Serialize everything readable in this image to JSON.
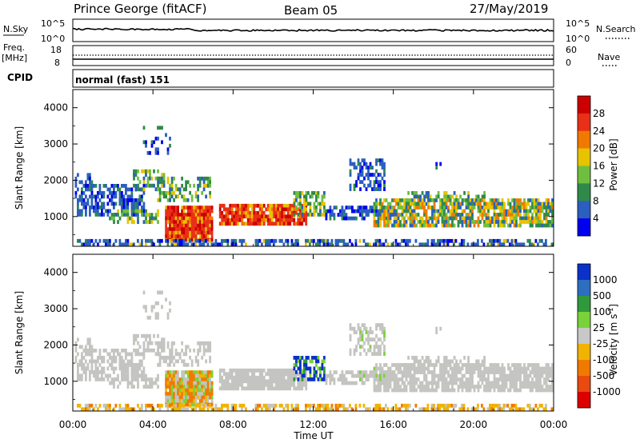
{
  "header": {
    "station": "Prince George (fitACF)",
    "beam": "Beam 05",
    "date": "27/May/2019"
  },
  "labels": {
    "nsky": "N.Sky",
    "nsearch": "N.Search",
    "freq": "Freq.",
    "freq_unit": "[MHz]",
    "nave": "Nave",
    "cpid": "CPID",
    "mode": "normal (fast) 151",
    "ylabel": "Slant Range [km]",
    "xlabel": "Time UT",
    "power_label": "Power [dB]",
    "velocity_label": "Velocity [m s",
    "velocity_exp": "-1",
    "velocity_label_end": "]"
  },
  "noise_axis": {
    "left_top": "10^5",
    "left_bottom": "10^0",
    "right_top": "10^5",
    "right_bottom": "10^0"
  },
  "freq_axis": {
    "left_top": "18",
    "left_bottom": "8",
    "right_top": "60",
    "right_bottom": "0"
  },
  "chart_data": {
    "type": "heatmap",
    "x_ticks": [
      "00:00",
      "04:00",
      "08:00",
      "12:00",
      "16:00",
      "20:00",
      "00:00"
    ],
    "x_hours": [
      0,
      4,
      8,
      12,
      16,
      20,
      24
    ],
    "y_ticks": [
      1000,
      2000,
      3000,
      4000
    ],
    "ylim": [
      180,
      4500
    ],
    "xlim": [
      0,
      24
    ],
    "power_scale": {
      "ticks": [
        "4",
        "8",
        "12",
        "16",
        "20",
        "24",
        "28"
      ],
      "colors": [
        "#0000ee",
        "#2b5fbf",
        "#2f8a4a",
        "#6fbf3f",
        "#e8c400",
        "#f07a00",
        "#e83018",
        "#cc0000"
      ]
    },
    "velocity_scale": {
      "ticks": [
        "1000",
        "500",
        "100",
        "25",
        "-25",
        "-100",
        "-500",
        "-1000"
      ],
      "colors": [
        "#0a32c8",
        "#2c6ec0",
        "#2e9a3c",
        "#7ad23a",
        "#c8c8c8",
        "#f0b400",
        "#f07a00",
        "#e84a10",
        "#dd0000"
      ]
    }
  },
  "colors": {
    "grey_scatter": "#c4c4c0"
  }
}
